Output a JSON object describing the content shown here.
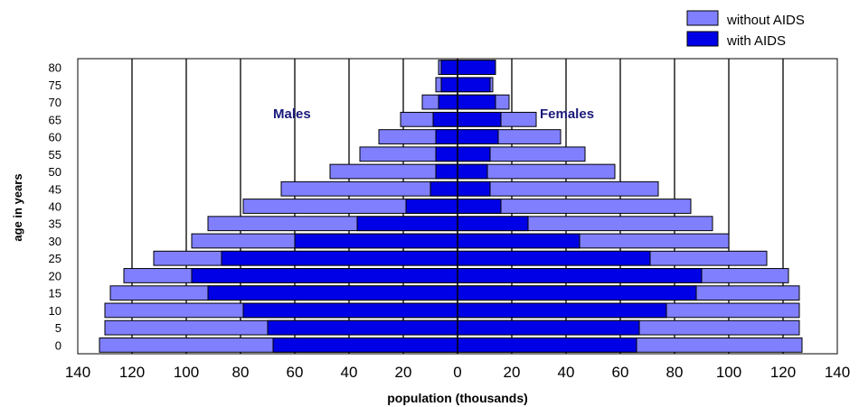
{
  "chart_data": {
    "type": "bar",
    "orientation": "horizontal",
    "subtype": "population-pyramid",
    "title": "",
    "xlabel": "population (thousands)",
    "ylabel": "age in years",
    "xlim": [
      -140,
      140
    ],
    "x_ticks": [
      -140,
      -120,
      -100,
      -80,
      -60,
      -40,
      -20,
      0,
      20,
      40,
      60,
      80,
      100,
      120,
      140
    ],
    "x_tick_labels": [
      "140",
      "120",
      "100",
      "80",
      "60",
      "40",
      "20",
      "0",
      "20",
      "40",
      "60",
      "80",
      "100",
      "120",
      "140"
    ],
    "categories": [
      "0",
      "5",
      "10",
      "15",
      "20",
      "25",
      "30",
      "35",
      "40",
      "45",
      "50",
      "55",
      "60",
      "65",
      "70",
      "75",
      "80"
    ],
    "grid": "vertical",
    "legend_position": "top-right",
    "annotations": [
      {
        "text": "Males"
      },
      {
        "text": "Females"
      }
    ],
    "series": [
      {
        "name": "without AIDS",
        "color": "#8080ff",
        "males": [
          132,
          130,
          130,
          128,
          123,
          112,
          98,
          92,
          79,
          65,
          47,
          36,
          29,
          21,
          13,
          8,
          7
        ],
        "females": [
          127,
          126,
          126,
          126,
          122,
          114,
          100,
          94,
          86,
          74,
          58,
          47,
          38,
          29,
          19,
          13,
          14
        ]
      },
      {
        "name": "with AIDS",
        "color": "#0000e6",
        "males": [
          68,
          70,
          79,
          92,
          98,
          87,
          60,
          37,
          19,
          10,
          8,
          8,
          8,
          9,
          7,
          6,
          6
        ],
        "females": [
          66,
          67,
          77,
          88,
          90,
          71,
          45,
          26,
          16,
          12,
          11,
          12,
          15,
          16,
          14,
          12,
          14
        ]
      }
    ]
  }
}
